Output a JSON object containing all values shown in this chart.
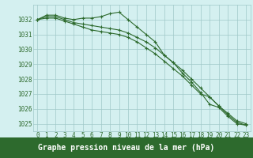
{
  "x": [
    0,
    1,
    2,
    3,
    4,
    5,
    6,
    7,
    8,
    9,
    10,
    11,
    12,
    13,
    14,
    15,
    16,
    17,
    18,
    19,
    20,
    21,
    22,
    23
  ],
  "line1": [
    1032.0,
    1032.3,
    1032.3,
    1032.1,
    1032.0,
    1032.1,
    1032.1,
    1032.2,
    1032.4,
    1032.5,
    1032.0,
    1031.5,
    1031.0,
    1030.5,
    1029.6,
    1029.1,
    1028.4,
    1027.8,
    1027.1,
    1026.3,
    1026.1,
    1025.5,
    1025.0,
    1024.9
  ],
  "line2": [
    1032.0,
    1032.2,
    1032.2,
    1032.0,
    1031.8,
    1031.7,
    1031.6,
    1031.5,
    1031.4,
    1031.3,
    1031.1,
    1030.8,
    1030.5,
    1030.1,
    1029.6,
    1029.1,
    1028.6,
    1028.0,
    1027.4,
    1026.8,
    1026.2,
    1025.7,
    1025.2,
    1025.0
  ],
  "line3": [
    1032.0,
    1032.1,
    1032.1,
    1031.9,
    1031.7,
    1031.5,
    1031.3,
    1031.2,
    1031.1,
    1031.0,
    1030.8,
    1030.5,
    1030.1,
    1029.7,
    1029.2,
    1028.7,
    1028.2,
    1027.6,
    1027.0,
    1026.8,
    1026.2,
    1025.6,
    1025.1,
    1024.9
  ],
  "xlim": [
    -0.5,
    23.5
  ],
  "ylim": [
    1024.5,
    1033.0
  ],
  "yticks": [
    1025,
    1026,
    1027,
    1028,
    1029,
    1030,
    1031,
    1032
  ],
  "xticks": [
    0,
    1,
    2,
    3,
    4,
    5,
    6,
    7,
    8,
    9,
    10,
    11,
    12,
    13,
    14,
    15,
    16,
    17,
    18,
    19,
    20,
    21,
    22,
    23
  ],
  "line_color": "#2d6a2d",
  "marker_color": "#2d6a2d",
  "bg_color": "#d4f0f0",
  "grid_color": "#a0c8c8",
  "xlabel": "Graphe pression niveau de la mer (hPa)",
  "xlabel_bg": "#2d6a2d",
  "tick_fontsize": 5.5,
  "label_fontsize": 7.0
}
